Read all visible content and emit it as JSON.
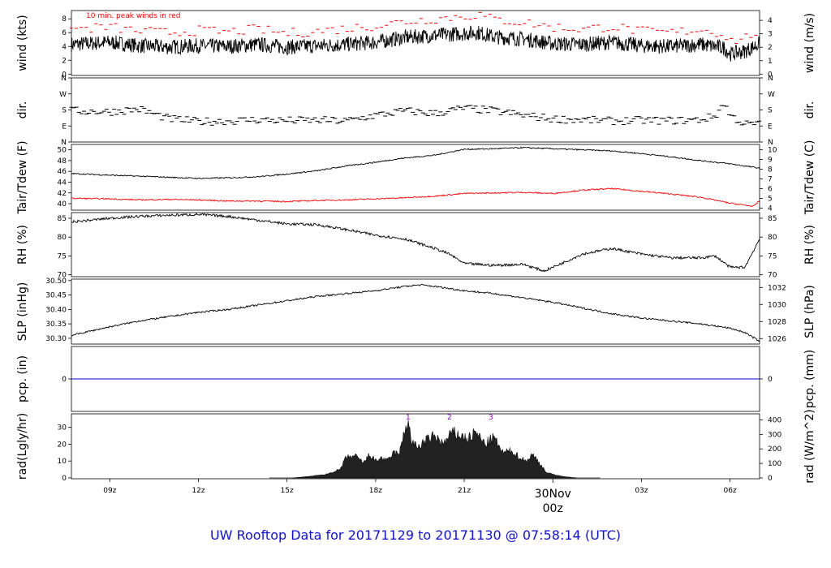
{
  "chart_data": {
    "type": "line",
    "title": "UW Rooftop Data for 20171129  to  20171130 @ 07:58:14  (UTC)",
    "time_axis": {
      "start_hour": 7.7,
      "end_hour": 31.0,
      "ticks": [
        {
          "hour": 9,
          "label": "09z"
        },
        {
          "hour": 12,
          "label": "12z"
        },
        {
          "hour": 15,
          "label": "15z"
        },
        {
          "hour": 18,
          "label": "18z"
        },
        {
          "hour": 21,
          "label": "21z"
        },
        {
          "hour": 27,
          "label": "03z"
        },
        {
          "hour": 30,
          "label": "06z"
        }
      ],
      "day_marker": {
        "hour": 24,
        "date_label": "30Nov",
        "time_label": "00z",
        "color": "#ff0000"
      }
    },
    "panels": [
      {
        "id": "wind",
        "left_label": "wind (kts)",
        "right_label": "wind (m/s)",
        "ylim": [
          -0.2,
          9.2
        ],
        "left_ticks": [
          0,
          2,
          4,
          6,
          8
        ],
        "right_ticks": [
          {
            "v": 0,
            "label": "0"
          },
          {
            "v": 1.944,
            "label": "1"
          },
          {
            "v": 3.888,
            "label": "2"
          },
          {
            "v": 5.832,
            "label": "3"
          },
          {
            "v": 7.776,
            "label": "4"
          }
        ],
        "annotation": "10 min. peak winds in red",
        "annotation_color": "#ff0000",
        "series": [
          {
            "name": "wind speed",
            "color": "#000000",
            "x": [
              7.7,
              9,
              10,
              11,
              12,
              13,
              14,
              15,
              16,
              17,
              18,
              19,
              20,
              21,
              21.5,
              22,
              23,
              24,
              25,
              26,
              27,
              28,
              29,
              29.8,
              30,
              30.5,
              31
            ],
            "y": [
              4.3,
              4.6,
              4.1,
              3.9,
              4.1,
              4.0,
              4.3,
              3.9,
              4.1,
              4.3,
              4.6,
              5.3,
              5.6,
              5.9,
              6.0,
              5.4,
              5.1,
              4.4,
              4.3,
              4.6,
              4.1,
              4.0,
              4.3,
              3.8,
              2.9,
              3.3,
              4.4
            ]
          },
          {
            "name": "10 min. peak winds",
            "color": "#ff0000",
            "x": [
              7.7,
              9,
              10,
              11,
              12,
              13,
              14,
              15,
              16,
              17,
              18,
              19,
              20,
              21,
              21.5,
              22,
              23,
              24,
              25,
              26,
              27,
              28,
              29,
              29.8,
              30,
              30.5,
              31
            ],
            "y": [
              6.5,
              6.8,
              6.2,
              6.0,
              6.3,
              6.1,
              6.5,
              5.9,
              6.2,
              6.6,
              7.0,
              7.6,
              8.0,
              8.4,
              8.6,
              7.9,
              7.5,
              6.8,
              6.5,
              6.9,
              6.2,
              6.0,
              6.5,
              5.8,
              4.8,
              5.2,
              6.4
            ]
          }
        ]
      },
      {
        "id": "dir",
        "left_label": "dir.",
        "right_label": "dir.",
        "ylim": [
          0,
          360
        ],
        "left_ticks": [
          {
            "v": 0,
            "label": "N"
          },
          {
            "v": 90,
            "label": "E"
          },
          {
            "v": 180,
            "label": "S"
          },
          {
            "v": 270,
            "label": "W"
          },
          {
            "v": 360,
            "label": "N"
          }
        ],
        "right_ticks": [
          {
            "v": 0,
            "label": "N"
          },
          {
            "v": 90,
            "label": "E"
          },
          {
            "v": 180,
            "label": "S"
          },
          {
            "v": 270,
            "label": "W"
          },
          {
            "v": 360,
            "label": "N"
          }
        ],
        "series": [
          {
            "name": "wind direction",
            "color": "#000000",
            "style": "dash",
            "x": [
              7.7,
              9,
              10,
              11,
              12,
              13,
              14,
              15,
              16,
              17,
              18,
              19,
              20,
              21,
              22,
              23,
              24,
              25,
              26,
              27,
              28,
              29,
              29.5,
              29.8,
              30,
              30.5,
              31
            ],
            "y": [
              175,
              170,
              185,
              130,
              115,
              118,
              125,
              120,
              122,
              118,
              150,
              175,
              160,
              190,
              175,
              150,
              130,
              125,
              118,
              122,
              120,
              125,
              145,
              220,
              150,
              100,
              100
            ]
          }
        ]
      },
      {
        "id": "temp",
        "left_label": "Tair/Tdew (F)",
        "right_label": "Tair/Tdew (C)",
        "ylim": [
          38.8,
          51
        ],
        "left_ticks": [
          40,
          42,
          44,
          46,
          48,
          50
        ],
        "right_ticks": [
          {
            "v": 39.2,
            "label": "4"
          },
          {
            "v": 41,
            "label": "5"
          },
          {
            "v": 42.8,
            "label": "6"
          },
          {
            "v": 44.6,
            "label": "7"
          },
          {
            "v": 46.4,
            "label": "8"
          },
          {
            "v": 48.2,
            "label": "9"
          },
          {
            "v": 50,
            "label": "10"
          }
        ],
        "series": [
          {
            "name": "Tair",
            "color": "#000000",
            "x": [
              7.7,
              9,
              10,
              11,
              12,
              13,
              14,
              15,
              16,
              17,
              18,
              19,
              20,
              21,
              22,
              23,
              24,
              25,
              26,
              27,
              28,
              29,
              30,
              31
            ],
            "y": [
              45.6,
              45.3,
              45.1,
              44.9,
              44.7,
              44.8,
              45.0,
              45.5,
              46.1,
              47.0,
              47.7,
              48.5,
              49.0,
              50.1,
              50.2,
              50.4,
              50.2,
              50.0,
              49.8,
              49.3,
              48.7,
              48.0,
              47.4,
              46.6
            ]
          },
          {
            "name": "Tdew",
            "color": "#ff0000",
            "x": [
              7.7,
              9,
              10,
              11,
              12,
              13,
              14,
              15,
              16,
              17,
              18,
              19,
              20,
              21,
              22,
              23,
              24,
              25,
              26,
              27,
              28,
              29,
              30,
              30.8,
              31
            ],
            "y": [
              41.0,
              40.9,
              40.7,
              40.8,
              40.7,
              40.5,
              40.5,
              40.4,
              40.6,
              40.7,
              40.9,
              41.1,
              41.4,
              41.9,
              42.0,
              42.1,
              41.9,
              42.5,
              42.8,
              42.3,
              41.8,
              41.2,
              40.1,
              39.5,
              40.6
            ]
          }
        ]
      },
      {
        "id": "rh",
        "left_label": "RH (%)",
        "right_label": "RH (%)",
        "ylim": [
          69.5,
          86.5
        ],
        "left_ticks": [
          70,
          75,
          80,
          85
        ],
        "right_ticks": [
          {
            "v": 70,
            "label": "70"
          },
          {
            "v": 75,
            "label": "75"
          },
          {
            "v": 80,
            "label": "80"
          },
          {
            "v": 85,
            "label": "85"
          }
        ],
        "series": [
          {
            "name": "RH",
            "color": "#000000",
            "x": [
              7.7,
              9,
              10,
              11,
              12,
              13,
              14,
              15,
              16,
              17,
              18,
              19,
              20,
              20.5,
              21,
              22,
              23,
              23.7,
              24,
              25,
              26,
              27,
              28,
              29,
              29.5,
              30,
              30.5,
              31
            ],
            "y": [
              84.0,
              85.0,
              85.5,
              85.8,
              86.0,
              85.5,
              84.5,
              83.5,
              83.3,
              82.0,
              80.5,
              79.5,
              77.0,
              75.5,
              73.0,
              72.5,
              72.8,
              71.0,
              72.0,
              75.5,
              77.0,
              75.5,
              74.5,
              74.5,
              75.0,
              72.0,
              72.0,
              79.5
            ]
          }
        ]
      },
      {
        "id": "slp",
        "left_label": "SLP (inHg)",
        "right_label": "SLP (hPa)",
        "ylim": [
          30.28,
          30.505
        ],
        "left_ticks": [
          30.3,
          30.35,
          30.4,
          30.45,
          30.5
        ],
        "left_tick_labels": [
          "30.30",
          "30.35",
          "30.40",
          "30.45",
          "30.50"
        ],
        "right_ticks": [
          {
            "v": 30.2989,
            "label": "1026"
          },
          {
            "v": 30.358,
            "label": "1028"
          },
          {
            "v": 30.417,
            "label": "1030"
          },
          {
            "v": 30.476,
            "label": "1032"
          }
        ],
        "series": [
          {
            "name": "SLP",
            "color": "#000000",
            "x": [
              7.7,
              9,
              10,
              11,
              12,
              13,
              14,
              15,
              16,
              17,
              18,
              19,
              19.5,
              20,
              21,
              22,
              23,
              24,
              25,
              26,
              27,
              28,
              29,
              30,
              30.5,
              31
            ],
            "y": [
              30.31,
              30.34,
              30.36,
              30.375,
              30.39,
              30.4,
              30.415,
              30.43,
              30.445,
              30.455,
              30.465,
              30.48,
              30.485,
              30.48,
              30.465,
              30.455,
              30.44,
              30.425,
              30.405,
              30.385,
              30.37,
              30.36,
              30.35,
              30.335,
              30.32,
              30.29
            ]
          }
        ]
      },
      {
        "id": "pcp",
        "left_label": "pcp. (in)",
        "right_label": "pcp. (mm)",
        "ylim": [
          -1,
          1
        ],
        "left_ticks": [
          0
        ],
        "right_ticks": [
          {
            "v": 0,
            "label": "0"
          }
        ],
        "series": [
          {
            "name": "precipitation",
            "color": "#0000cc",
            "x": [
              7.7,
              31
            ],
            "y": [
              0,
              0
            ]
          }
        ]
      },
      {
        "id": "rad",
        "left_label": "rad(Lgly/hr)",
        "right_label": "rad (W/m^2)",
        "ylim": [
          -0.5,
          38
        ],
        "left_ticks": [
          0,
          10,
          20,
          30
        ],
        "right_ticks": [
          {
            "v": 0,
            "label": "0"
          },
          {
            "v": 8.6,
            "label": "100"
          },
          {
            "v": 17.2,
            "label": "200"
          },
          {
            "v": 25.8,
            "label": "300"
          },
          {
            "v": 34.4,
            "label": "400"
          }
        ],
        "markers": [
          {
            "hour": 19.1,
            "label": "1"
          },
          {
            "hour": 20.5,
            "label": "2"
          },
          {
            "hour": 21.9,
            "label": "3"
          }
        ],
        "marker_color": "#9900cc",
        "series": [
          {
            "name": "solar radiation",
            "color": "#000000",
            "style": "area",
            "x": [
              15.2,
              15.8,
              16.3,
              16.8,
              17.0,
              17.3,
              17.6,
              17.8,
              18.0,
              18.2,
              18.4,
              18.6,
              18.8,
              19.0,
              19.1,
              19.2,
              19.4,
              19.7,
              20.0,
              20.3,
              20.6,
              20.9,
              21.1,
              21.4,
              21.7,
              22.0,
              22.3,
              22.6,
              22.9,
              23.1,
              23.3,
              23.5,
              23.8,
              24.3,
              24.8
            ],
            "y": [
              0,
              1,
              2,
              5,
              12,
              13,
              9,
              14,
              10,
              12,
              10,
              15,
              14,
              29,
              35,
              22,
              18,
              22,
              25,
              20,
              27,
              25,
              23,
              27,
              20,
              24,
              15,
              16,
              12,
              10,
              14,
              10,
              3,
              1,
              0
            ]
          }
        ]
      }
    ]
  }
}
